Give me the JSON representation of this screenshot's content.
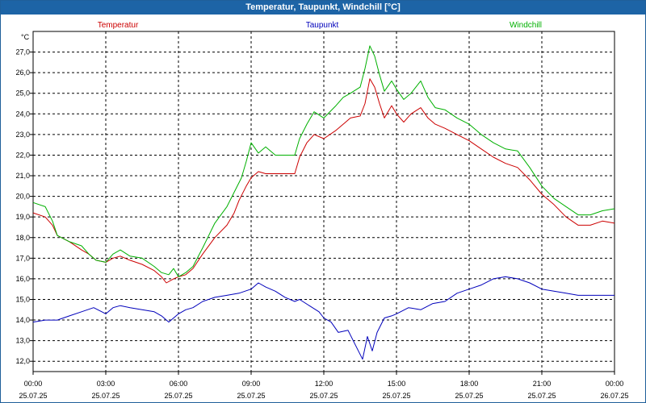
{
  "window": {
    "title": "Temperatur, Taupunkt, Windchill [°C]"
  },
  "chart_data": {
    "type": "line",
    "title": "Temperatur, Taupunkt, Windchill [°C]",
    "ylabel": "°C",
    "ylim": [
      11.5,
      28.0
    ],
    "xlim": [
      0,
      24
    ],
    "grid": true,
    "y_ticks": [
      12,
      13,
      14,
      15,
      16,
      17,
      18,
      19,
      20,
      21,
      22,
      23,
      24,
      25,
      26,
      27
    ],
    "y_tick_labels": [
      "12,0",
      "13,0",
      "14,0",
      "15,0",
      "16,0",
      "17,0",
      "18,0",
      "19,0",
      "20,0",
      "21,0",
      "22,0",
      "23,0",
      "24,0",
      "25,0",
      "26,0",
      "27,0"
    ],
    "x_ticks": [
      {
        "hour": 0,
        "time": "00:00",
        "date": "25.07.25"
      },
      {
        "hour": 3,
        "time": "03:00",
        "date": "25.07.25"
      },
      {
        "hour": 6,
        "time": "06:00",
        "date": "25.07.25"
      },
      {
        "hour": 9,
        "time": "09:00",
        "date": "25.07.25"
      },
      {
        "hour": 12,
        "time": "12:00",
        "date": "25.07.25"
      },
      {
        "hour": 15,
        "time": "15:00",
        "date": "25.07.25"
      },
      {
        "hour": 18,
        "time": "18:00",
        "date": "25.07.25"
      },
      {
        "hour": 21,
        "time": "21:00",
        "date": "25.07.25"
      },
      {
        "hour": 24,
        "time": "00:00",
        "date": "26.07.25"
      }
    ],
    "legend": [
      {
        "name": "Temperatur",
        "color": "#cc0000",
        "position": "left"
      },
      {
        "name": "Taupunkt",
        "color": "#0000bb",
        "position": "center"
      },
      {
        "name": "Windchill",
        "color": "#00b000",
        "position": "right"
      }
    ],
    "series": [
      {
        "name": "Temperatur",
        "color": "#cc0000",
        "points": [
          [
            0,
            19.2
          ],
          [
            0.5,
            19.0
          ],
          [
            0.8,
            18.6
          ],
          [
            1,
            18.1
          ],
          [
            1.5,
            17.8
          ],
          [
            2,
            17.4
          ],
          [
            2.3,
            17.2
          ],
          [
            2.6,
            16.9
          ],
          [
            3,
            16.8
          ],
          [
            3.3,
            17.0
          ],
          [
            3.6,
            17.1
          ],
          [
            4,
            16.9
          ],
          [
            4.5,
            16.7
          ],
          [
            5,
            16.4
          ],
          [
            5.3,
            16.1
          ],
          [
            5.5,
            15.8
          ],
          [
            5.8,
            16.0
          ],
          [
            6,
            16.1
          ],
          [
            6.3,
            16.2
          ],
          [
            6.6,
            16.5
          ],
          [
            7,
            17.2
          ],
          [
            7.5,
            18.0
          ],
          [
            8,
            18.6
          ],
          [
            8.3,
            19.2
          ],
          [
            8.5,
            19.8
          ],
          [
            8.8,
            20.5
          ],
          [
            9,
            20.9
          ],
          [
            9.3,
            21.2
          ],
          [
            9.6,
            21.1
          ],
          [
            10,
            21.1
          ],
          [
            10.4,
            21.1
          ],
          [
            10.8,
            21.1
          ],
          [
            11,
            21.9
          ],
          [
            11.3,
            22.6
          ],
          [
            11.6,
            23.0
          ],
          [
            12,
            22.8
          ],
          [
            12.5,
            23.2
          ],
          [
            12.8,
            23.5
          ],
          [
            13.1,
            23.8
          ],
          [
            13.5,
            23.9
          ],
          [
            13.7,
            24.5
          ],
          [
            13.9,
            25.7
          ],
          [
            14.1,
            25.3
          ],
          [
            14.3,
            24.5
          ],
          [
            14.5,
            23.8
          ],
          [
            14.8,
            24.4
          ],
          [
            15,
            24.0
          ],
          [
            15.3,
            23.6
          ],
          [
            15.6,
            24.0
          ],
          [
            16,
            24.3
          ],
          [
            16.3,
            23.8
          ],
          [
            16.6,
            23.5
          ],
          [
            17,
            23.3
          ],
          [
            17.5,
            23.0
          ],
          [
            18,
            22.7
          ],
          [
            18.5,
            22.3
          ],
          [
            19,
            21.9
          ],
          [
            19.5,
            21.6
          ],
          [
            20,
            21.4
          ],
          [
            20.5,
            20.8
          ],
          [
            21,
            20.1
          ],
          [
            21.5,
            19.6
          ],
          [
            22,
            19.0
          ],
          [
            22.5,
            18.6
          ],
          [
            23,
            18.6
          ],
          [
            23.5,
            18.8
          ],
          [
            24,
            18.7
          ]
        ]
      },
      {
        "name": "Taupunkt",
        "color": "#0000bb",
        "points": [
          [
            0,
            13.9
          ],
          [
            0.5,
            14.0
          ],
          [
            1,
            14.0
          ],
          [
            1.5,
            14.2
          ],
          [
            2,
            14.4
          ],
          [
            2.5,
            14.6
          ],
          [
            3,
            14.3
          ],
          [
            3.3,
            14.6
          ],
          [
            3.6,
            14.7
          ],
          [
            4,
            14.6
          ],
          [
            4.5,
            14.5
          ],
          [
            5,
            14.4
          ],
          [
            5.3,
            14.2
          ],
          [
            5.6,
            13.9
          ],
          [
            6,
            14.3
          ],
          [
            6.3,
            14.5
          ],
          [
            6.6,
            14.6
          ],
          [
            7,
            14.9
          ],
          [
            7.5,
            15.1
          ],
          [
            8,
            15.2
          ],
          [
            8.5,
            15.3
          ],
          [
            9,
            15.5
          ],
          [
            9.3,
            15.8
          ],
          [
            9.6,
            15.6
          ],
          [
            10,
            15.4
          ],
          [
            10.4,
            15.1
          ],
          [
            10.8,
            14.9
          ],
          [
            11,
            15.0
          ],
          [
            11.4,
            14.7
          ],
          [
            11.8,
            14.4
          ],
          [
            12,
            14.1
          ],
          [
            12.3,
            13.9
          ],
          [
            12.6,
            13.4
          ],
          [
            13,
            13.5
          ],
          [
            13.3,
            12.8
          ],
          [
            13.6,
            12.1
          ],
          [
            13.8,
            13.2
          ],
          [
            14,
            12.5
          ],
          [
            14.2,
            13.4
          ],
          [
            14.5,
            14.1
          ],
          [
            14.8,
            14.2
          ],
          [
            15,
            14.3
          ],
          [
            15.5,
            14.6
          ],
          [
            16,
            14.5
          ],
          [
            16.5,
            14.8
          ],
          [
            17,
            14.9
          ],
          [
            17.5,
            15.3
          ],
          [
            18,
            15.5
          ],
          [
            18.5,
            15.7
          ],
          [
            19,
            16.0
          ],
          [
            19.5,
            16.1
          ],
          [
            20,
            16.0
          ],
          [
            20.5,
            15.8
          ],
          [
            21,
            15.5
          ],
          [
            21.5,
            15.4
          ],
          [
            22,
            15.3
          ],
          [
            22.5,
            15.2
          ],
          [
            23,
            15.2
          ],
          [
            23.5,
            15.2
          ],
          [
            24,
            15.2
          ]
        ]
      },
      {
        "name": "Windchill",
        "color": "#00b000",
        "points": [
          [
            0,
            19.7
          ],
          [
            0.5,
            19.5
          ],
          [
            0.8,
            18.8
          ],
          [
            1,
            18.1
          ],
          [
            1.5,
            17.8
          ],
          [
            2,
            17.6
          ],
          [
            2.3,
            17.2
          ],
          [
            2.6,
            16.9
          ],
          [
            3,
            16.8
          ],
          [
            3.3,
            17.2
          ],
          [
            3.6,
            17.4
          ],
          [
            4,
            17.1
          ],
          [
            4.5,
            17.0
          ],
          [
            5,
            16.6
          ],
          [
            5.3,
            16.3
          ],
          [
            5.6,
            16.2
          ],
          [
            5.8,
            16.5
          ],
          [
            6,
            16.1
          ],
          [
            6.3,
            16.3
          ],
          [
            6.6,
            16.6
          ],
          [
            7,
            17.5
          ],
          [
            7.5,
            18.7
          ],
          [
            8,
            19.5
          ],
          [
            8.3,
            20.2
          ],
          [
            8.6,
            20.9
          ],
          [
            8.8,
            21.7
          ],
          [
            9,
            22.6
          ],
          [
            9.3,
            22.1
          ],
          [
            9.6,
            22.4
          ],
          [
            10,
            22.0
          ],
          [
            10.4,
            22.0
          ],
          [
            10.8,
            22.0
          ],
          [
            11,
            22.8
          ],
          [
            11.3,
            23.5
          ],
          [
            11.6,
            24.1
          ],
          [
            12,
            23.8
          ],
          [
            12.5,
            24.4
          ],
          [
            12.8,
            24.8
          ],
          [
            13.1,
            25.0
          ],
          [
            13.5,
            25.3
          ],
          [
            13.7,
            26.2
          ],
          [
            13.9,
            27.3
          ],
          [
            14.1,
            26.8
          ],
          [
            14.3,
            25.9
          ],
          [
            14.5,
            25.1
          ],
          [
            14.8,
            25.6
          ],
          [
            15,
            25.2
          ],
          [
            15.3,
            24.7
          ],
          [
            15.6,
            25.0
          ],
          [
            16,
            25.6
          ],
          [
            16.3,
            24.8
          ],
          [
            16.6,
            24.3
          ],
          [
            17,
            24.2
          ],
          [
            17.5,
            23.8
          ],
          [
            18,
            23.5
          ],
          [
            18.5,
            23.0
          ],
          [
            19,
            22.6
          ],
          [
            19.5,
            22.3
          ],
          [
            20,
            22.2
          ],
          [
            20.5,
            21.4
          ],
          [
            21,
            20.5
          ],
          [
            21.5,
            19.9
          ],
          [
            22,
            19.5
          ],
          [
            22.5,
            19.1
          ],
          [
            23,
            19.1
          ],
          [
            23.5,
            19.3
          ],
          [
            24,
            19.4
          ]
        ]
      }
    ]
  }
}
